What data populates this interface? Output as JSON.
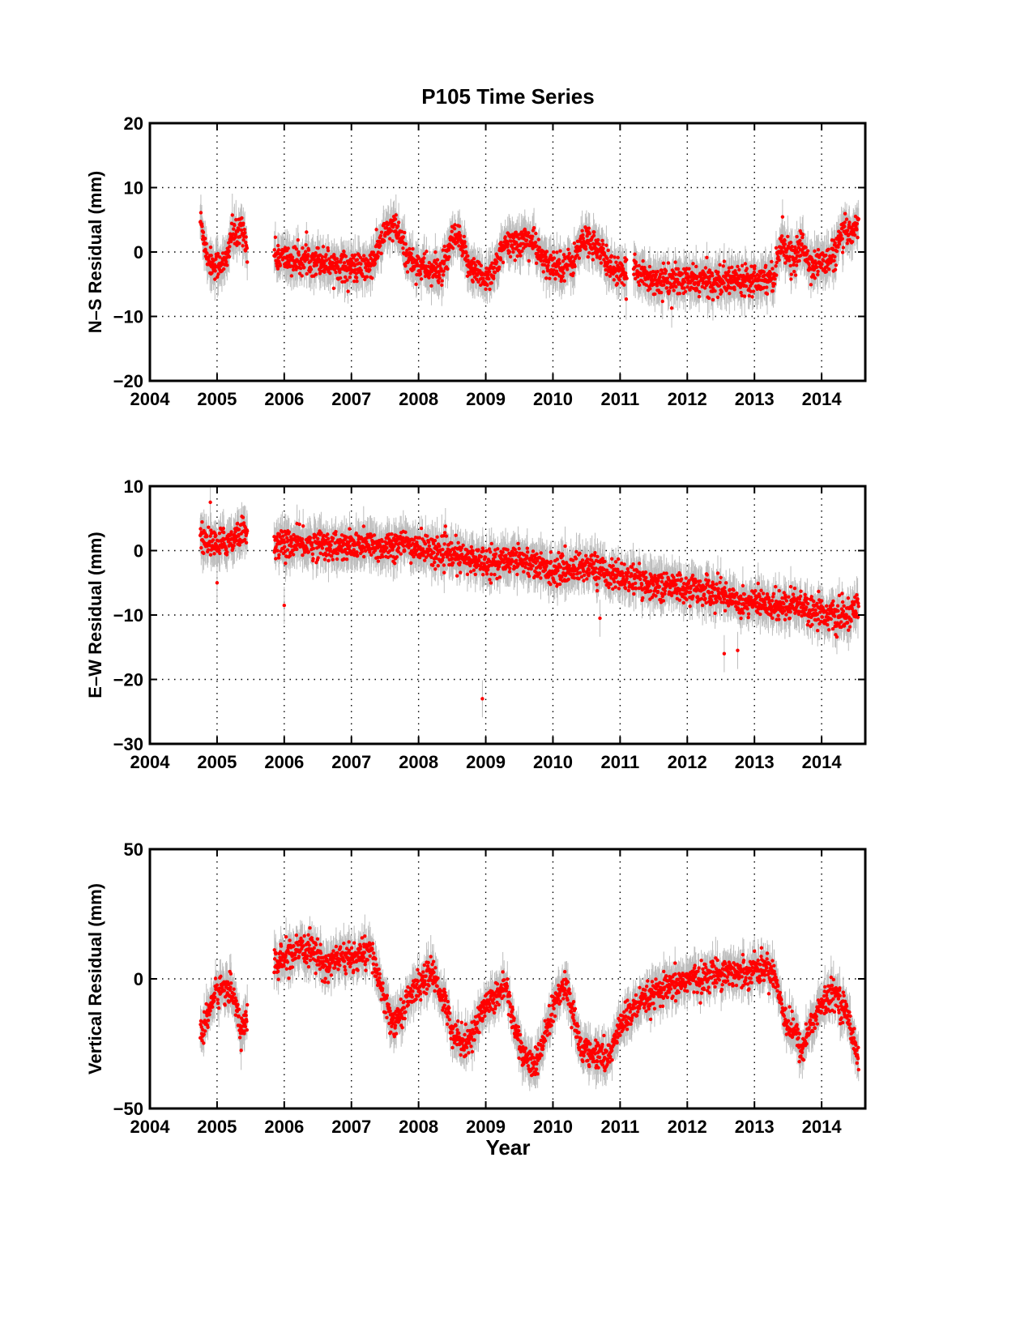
{
  "figure": {
    "title": "P105 Time Series",
    "xlabel": "Year"
  },
  "colors": {
    "points": "#ff0000",
    "error_bars": "#bdbdbd",
    "axes": "#000000",
    "grid": "#000000"
  },
  "chart_data": [
    {
      "type": "scatter",
      "title": "P105 Time Series",
      "xlabel": "",
      "ylabel": "N–S Residual (mm)",
      "xlim": [
        2004,
        2014.65
      ],
      "ylim": [
        -20,
        20
      ],
      "xticks": [
        2004,
        2005,
        2006,
        2007,
        2008,
        2009,
        2010,
        2011,
        2012,
        2013,
        2014
      ],
      "yticks": [
        -20,
        -10,
        0,
        10,
        20
      ],
      "ytick_labels": [
        "−20",
        "−10",
        "0",
        "10",
        "20"
      ],
      "grid": "dotted",
      "error_bars": true,
      "segments": [
        {
          "x": [
            2004.75,
            2004.8,
            2004.85,
            2004.9,
            2004.95,
            2005.0,
            2005.05,
            2005.1,
            2005.15,
            2005.2,
            2005.25,
            2005.3,
            2005.35,
            2005.4,
            2005.45
          ],
          "y": [
            5,
            2.5,
            -0.5,
            -1.5,
            -2,
            -2,
            -1.5,
            -2,
            -1,
            2.5,
            3,
            2,
            4,
            3.5,
            0
          ]
        },
        {
          "x": [
            2005.85,
            2006.0,
            2006.2,
            2006.4,
            2006.6,
            2006.8,
            2007.0,
            2007.2,
            2007.3,
            2007.4,
            2007.5,
            2007.6,
            2007.7,
            2007.8,
            2007.9,
            2008.0,
            2008.1,
            2008.2,
            2008.3,
            2008.4,
            2008.5,
            2008.6,
            2008.7,
            2008.8,
            2008.9,
            2009.0,
            2009.1,
            2009.2,
            2009.3,
            2009.4,
            2009.5,
            2009.6,
            2009.7,
            2009.8,
            2009.9,
            2010.0,
            2010.1,
            2010.2,
            2010.3,
            2010.4,
            2010.5,
            2010.6,
            2010.7,
            2010.8,
            2010.9,
            2011.0,
            2011.1
          ],
          "y": [
            -0.5,
            -1,
            -1.5,
            -1,
            -1.5,
            -2,
            -2.5,
            -2.5,
            -2,
            0.5,
            3,
            4,
            3,
            0,
            -1.5,
            -2,
            -2.5,
            -3,
            -3,
            -2,
            2,
            2,
            -1,
            -2.5,
            -3.5,
            -4,
            -3,
            -1,
            1,
            1.5,
            1.5,
            2,
            1.5,
            -0.5,
            -2,
            -2,
            -2,
            -2,
            -1.5,
            1,
            2,
            1.5,
            0,
            -1.5,
            -2.5,
            -3.5,
            -4
          ]
        },
        {
          "x": [
            2011.2,
            2011.4,
            2011.6,
            2011.8,
            2012.0,
            2012.2,
            2012.4,
            2012.6,
            2012.8,
            2013.0,
            2013.2,
            2013.3,
            2013.4,
            2013.5,
            2013.6,
            2013.7,
            2013.8,
            2013.9,
            2014.0,
            2014.1,
            2014.2,
            2014.3,
            2014.4,
            2014.5,
            2014.55
          ],
          "y": [
            -2,
            -4,
            -4.5,
            -4.5,
            -4.5,
            -4.5,
            -4.5,
            -4.5,
            -4,
            -4,
            -4,
            -3.5,
            2,
            0,
            -1.5,
            1.5,
            -1.5,
            -2,
            -1.5,
            -1.5,
            0,
            2.5,
            3,
            4,
            5
          ]
        }
      ]
    },
    {
      "type": "scatter",
      "title": "",
      "xlabel": "",
      "ylabel": "E–W Residual (mm)",
      "xlim": [
        2004,
        2014.65
      ],
      "ylim": [
        -30,
        10
      ],
      "xticks": [
        2004,
        2005,
        2006,
        2007,
        2008,
        2009,
        2010,
        2011,
        2012,
        2013,
        2014
      ],
      "yticks": [
        -30,
        -20,
        -10,
        0,
        10
      ],
      "ytick_labels": [
        "−30",
        "−20",
        "−10",
        "0",
        "10"
      ],
      "grid": "dotted",
      "error_bars": true,
      "segments": [
        {
          "x": [
            2004.75,
            2004.85,
            2004.95,
            2005.05,
            2005.15,
            2005.25,
            2005.35,
            2005.45
          ],
          "y": [
            2,
            1.5,
            1,
            1,
            1.5,
            2,
            3,
            3
          ]
        },
        {
          "x": [
            2005.85,
            2006.0,
            2006.2,
            2006.4,
            2006.6,
            2006.8,
            2007.0,
            2007.2,
            2007.4,
            2007.6,
            2007.8,
            2008.0,
            2008.2,
            2008.4,
            2008.6,
            2008.8,
            2009.0,
            2009.2,
            2009.4,
            2009.6,
            2009.8,
            2010.0,
            2010.2,
            2010.4,
            2010.6,
            2010.8,
            2011.0,
            2011.2,
            2011.4,
            2011.6,
            2011.8,
            2012.0,
            2012.2,
            2012.4,
            2012.6,
            2012.8,
            2013.0,
            2013.2,
            2013.4,
            2013.6,
            2013.8,
            2014.0,
            2014.2,
            2014.4,
            2014.55
          ],
          "y": [
            1,
            1,
            1,
            1,
            1,
            0.5,
            0.5,
            1,
            0.5,
            1,
            1,
            0.5,
            0,
            -0.5,
            -1,
            -1.5,
            -1.5,
            -2,
            -1,
            -1.5,
            -2.5,
            -3,
            -3,
            -2.5,
            -2.5,
            -3.5,
            -4,
            -4.5,
            -5,
            -5.5,
            -5.5,
            -6,
            -6,
            -6.5,
            -7,
            -8,
            -8,
            -8.5,
            -8.5,
            -8,
            -9,
            -9.5,
            -10.5,
            -10,
            -9
          ]
        }
      ],
      "outliers": {
        "x": [
          2004.9,
          2005.0,
          2006.0,
          2008.95,
          2010.7,
          2012.55,
          2012.75
        ],
        "y": [
          7.5,
          -5,
          -8.5,
          -23,
          -10.5,
          -16,
          -15.5
        ]
      }
    },
    {
      "type": "scatter",
      "title": "",
      "xlabel": "Year",
      "ylabel": "Vertical Residual (mm)",
      "xlim": [
        2004,
        2014.65
      ],
      "ylim": [
        -50,
        50
      ],
      "xticks": [
        2004,
        2005,
        2006,
        2007,
        2008,
        2009,
        2010,
        2011,
        2012,
        2013,
        2014
      ],
      "yticks": [
        -50,
        0,
        50
      ],
      "ytick_labels": [
        "−50",
        "0",
        "50"
      ],
      "grid": "dotted",
      "error_bars": true,
      "segments": [
        {
          "x": [
            2004.75,
            2004.8,
            2004.85,
            2004.9,
            2005.0,
            2005.1,
            2005.2,
            2005.3,
            2005.35,
            2005.4,
            2005.45
          ],
          "y": [
            -20,
            -20,
            -15,
            -10,
            -5,
            -3,
            -5,
            -10,
            -20,
            -18,
            -15
          ]
        },
        {
          "x": [
            2005.85,
            2006.0,
            2006.2,
            2006.4,
            2006.6,
            2006.8,
            2007.0,
            2007.2,
            2007.3,
            2007.4,
            2007.5,
            2007.6,
            2007.7,
            2007.8,
            2007.9,
            2008.0,
            2008.1,
            2008.2,
            2008.3,
            2008.4,
            2008.5,
            2008.6,
            2008.7,
            2008.8,
            2008.9,
            2009.0,
            2009.1,
            2009.2,
            2009.3,
            2009.4,
            2009.5,
            2009.6,
            2009.7,
            2009.8,
            2009.9,
            2010.0,
            2010.1,
            2010.2,
            2010.3,
            2010.4,
            2010.5,
            2010.6,
            2010.7,
            2010.8,
            2010.9,
            2011.0,
            2011.1,
            2011.2,
            2011.4,
            2011.6,
            2011.8,
            2012.0,
            2012.2,
            2012.4,
            2012.6,
            2012.8,
            2013.0,
            2013.2,
            2013.3,
            2013.4,
            2013.5,
            2013.6,
            2013.7,
            2013.8,
            2013.9,
            2014.0,
            2014.1,
            2014.2,
            2014.3,
            2014.4,
            2014.5,
            2014.55
          ],
          "y": [
            5,
            8,
            10,
            12,
            5,
            8,
            8,
            10,
            10,
            0,
            -8,
            -18,
            -15,
            -10,
            -5,
            -3,
            0,
            2,
            -3,
            -10,
            -20,
            -22,
            -25,
            -22,
            -15,
            -10,
            -8,
            -5,
            -2,
            -15,
            -25,
            -30,
            -35,
            -30,
            -20,
            -12,
            -5,
            -2,
            -15,
            -25,
            -28,
            -30,
            -28,
            -32,
            -25,
            -18,
            -15,
            -12,
            -8,
            -5,
            -3,
            0,
            0,
            2,
            3,
            2,
            4,
            4,
            2,
            -10,
            -18,
            -20,
            -28,
            -20,
            -15,
            -10,
            -8,
            -5,
            -10,
            -15,
            -25,
            -32
          ]
        }
      ]
    }
  ]
}
